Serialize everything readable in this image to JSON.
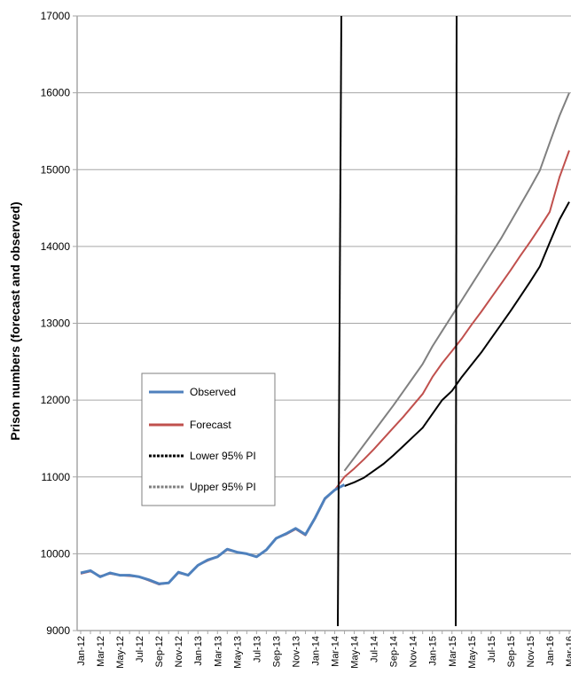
{
  "chart_data": {
    "type": "line",
    "ylabel": "Prison numbers (forecast and observed)",
    "ylim": [
      9000,
      17000
    ],
    "yticks": [
      9000,
      10000,
      11000,
      12000,
      13000,
      14000,
      15000,
      16000,
      17000
    ],
    "xticks": [
      "Jan-12",
      "Mar-12",
      "May-12",
      "Jul-12",
      "Sep-12",
      "Nov-12",
      "Jan-13",
      "Mar-13",
      "May-13",
      "Jul-13",
      "Sep-13",
      "Nov-13",
      "Jan-14",
      "Mar-14",
      "May-14",
      "Jul-14",
      "Sep-14",
      "Nov-14",
      "Jan-15",
      "Mar-15",
      "May-15",
      "Jul-15",
      "Sep-15",
      "Nov-15",
      "Jan-16",
      "Mar-16"
    ],
    "grid": true,
    "legend": "center-left",
    "vertical_markers": [
      "Apr-14",
      "Apr-15"
    ],
    "series": [
      {
        "name": "Observed",
        "color": "#4f81bd",
        "style": "solid",
        "x": [
          "Jan-12",
          "Feb-12",
          "Mar-12",
          "Apr-12",
          "May-12",
          "Jun-12",
          "Jul-12",
          "Aug-12",
          "Sep-12",
          "Oct-12",
          "Nov-12",
          "Dec-12",
          "Jan-13",
          "Feb-13",
          "Mar-13",
          "Apr-13",
          "May-13",
          "Jun-13",
          "Jul-13",
          "Aug-13",
          "Sep-13",
          "Oct-13",
          "Nov-13",
          "Dec-13",
          "Jan-14",
          "Feb-14",
          "Mar-14",
          "Apr-14"
        ],
        "values": [
          9750,
          9780,
          9700,
          9750,
          9720,
          9720,
          9700,
          9660,
          9610,
          9620,
          9760,
          9720,
          9850,
          9920,
          9960,
          10060,
          10020,
          10000,
          9960,
          10050,
          10200,
          10260,
          10330,
          10250,
          10470,
          10720,
          10830,
          10900
        ]
      },
      {
        "name": "Forecast",
        "color": "#c0504d",
        "style": "solid",
        "x": [
          "Jan-12",
          "Feb-12",
          "Mar-12",
          "Apr-12",
          "May-12",
          "Jun-12",
          "Jul-12",
          "Aug-12",
          "Sep-12",
          "Oct-12",
          "Nov-12",
          "Dec-12",
          "Jan-13",
          "Feb-13",
          "Mar-13",
          "Apr-13",
          "May-13",
          "Jun-13",
          "Jul-13",
          "Aug-13",
          "Sep-13",
          "Oct-13",
          "Nov-13",
          "Dec-13",
          "Jan-14",
          "Feb-14",
          "Mar-14",
          "Apr-14",
          "May-14",
          "Jun-14",
          "Jul-14",
          "Aug-14",
          "Sep-14",
          "Oct-14",
          "Nov-14",
          "Dec-14",
          "Jan-15",
          "Feb-15",
          "Mar-15",
          "Apr-15",
          "May-15",
          "Jun-15",
          "Jul-15",
          "Aug-15",
          "Sep-15",
          "Oct-15",
          "Nov-15",
          "Dec-15",
          "Jan-16",
          "Feb-16",
          "Mar-16"
        ],
        "values": [
          9740,
          9770,
          9710,
          9740,
          9720,
          9710,
          9700,
          9650,
          9600,
          9620,
          9750,
          9720,
          9850,
          9910,
          9960,
          10050,
          10020,
          10000,
          9960,
          10050,
          10200,
          10250,
          10320,
          10240,
          10460,
          10710,
          10830,
          11000,
          11110,
          11230,
          11360,
          11500,
          11640,
          11780,
          11930,
          12080,
          12300,
          12480,
          12640,
          12800,
          12980,
          13150,
          13330,
          13510,
          13690,
          13880,
          14060,
          14250,
          14450,
          14900,
          15250
        ]
      },
      {
        "name": "Lower 95% PI",
        "color": "#000000",
        "style": "dashed",
        "x": [
          "Apr-14",
          "May-14",
          "Jun-14",
          "Jul-14",
          "Aug-14",
          "Sep-14",
          "Oct-14",
          "Nov-14",
          "Dec-14",
          "Jan-15",
          "Feb-15",
          "Mar-15",
          "Apr-15",
          "May-15",
          "Jun-15",
          "Jul-15",
          "Aug-15",
          "Sep-15",
          "Oct-15",
          "Nov-15",
          "Dec-15",
          "Jan-16",
          "Feb-16",
          "Mar-16"
        ],
        "values": [
          10880,
          10930,
          10990,
          11080,
          11170,
          11280,
          11400,
          11520,
          11640,
          11820,
          12000,
          12120,
          12300,
          12460,
          12620,
          12800,
          12980,
          13160,
          13350,
          13540,
          13740,
          14050,
          14350,
          14580
        ]
      },
      {
        "name": "Upper 95% PI",
        "color": "#808080",
        "style": "dashed",
        "x": [
          "Apr-14",
          "May-14",
          "Jun-14",
          "Jul-14",
          "Aug-14",
          "Sep-14",
          "Oct-14",
          "Nov-14",
          "Dec-14",
          "Jan-15",
          "Feb-15",
          "Mar-15",
          "Apr-15",
          "May-15",
          "Jun-15",
          "Jul-15",
          "Aug-15",
          "Sep-15",
          "Oct-15",
          "Nov-15",
          "Dec-15",
          "Jan-16",
          "Feb-16",
          "Mar-16"
        ],
        "values": [
          11080,
          11250,
          11420,
          11590,
          11760,
          11930,
          12110,
          12290,
          12470,
          12700,
          12900,
          13100,
          13300,
          13500,
          13700,
          13900,
          14100,
          14320,
          14540,
          14760,
          14990,
          15350,
          15700,
          16000
        ]
      }
    ]
  }
}
